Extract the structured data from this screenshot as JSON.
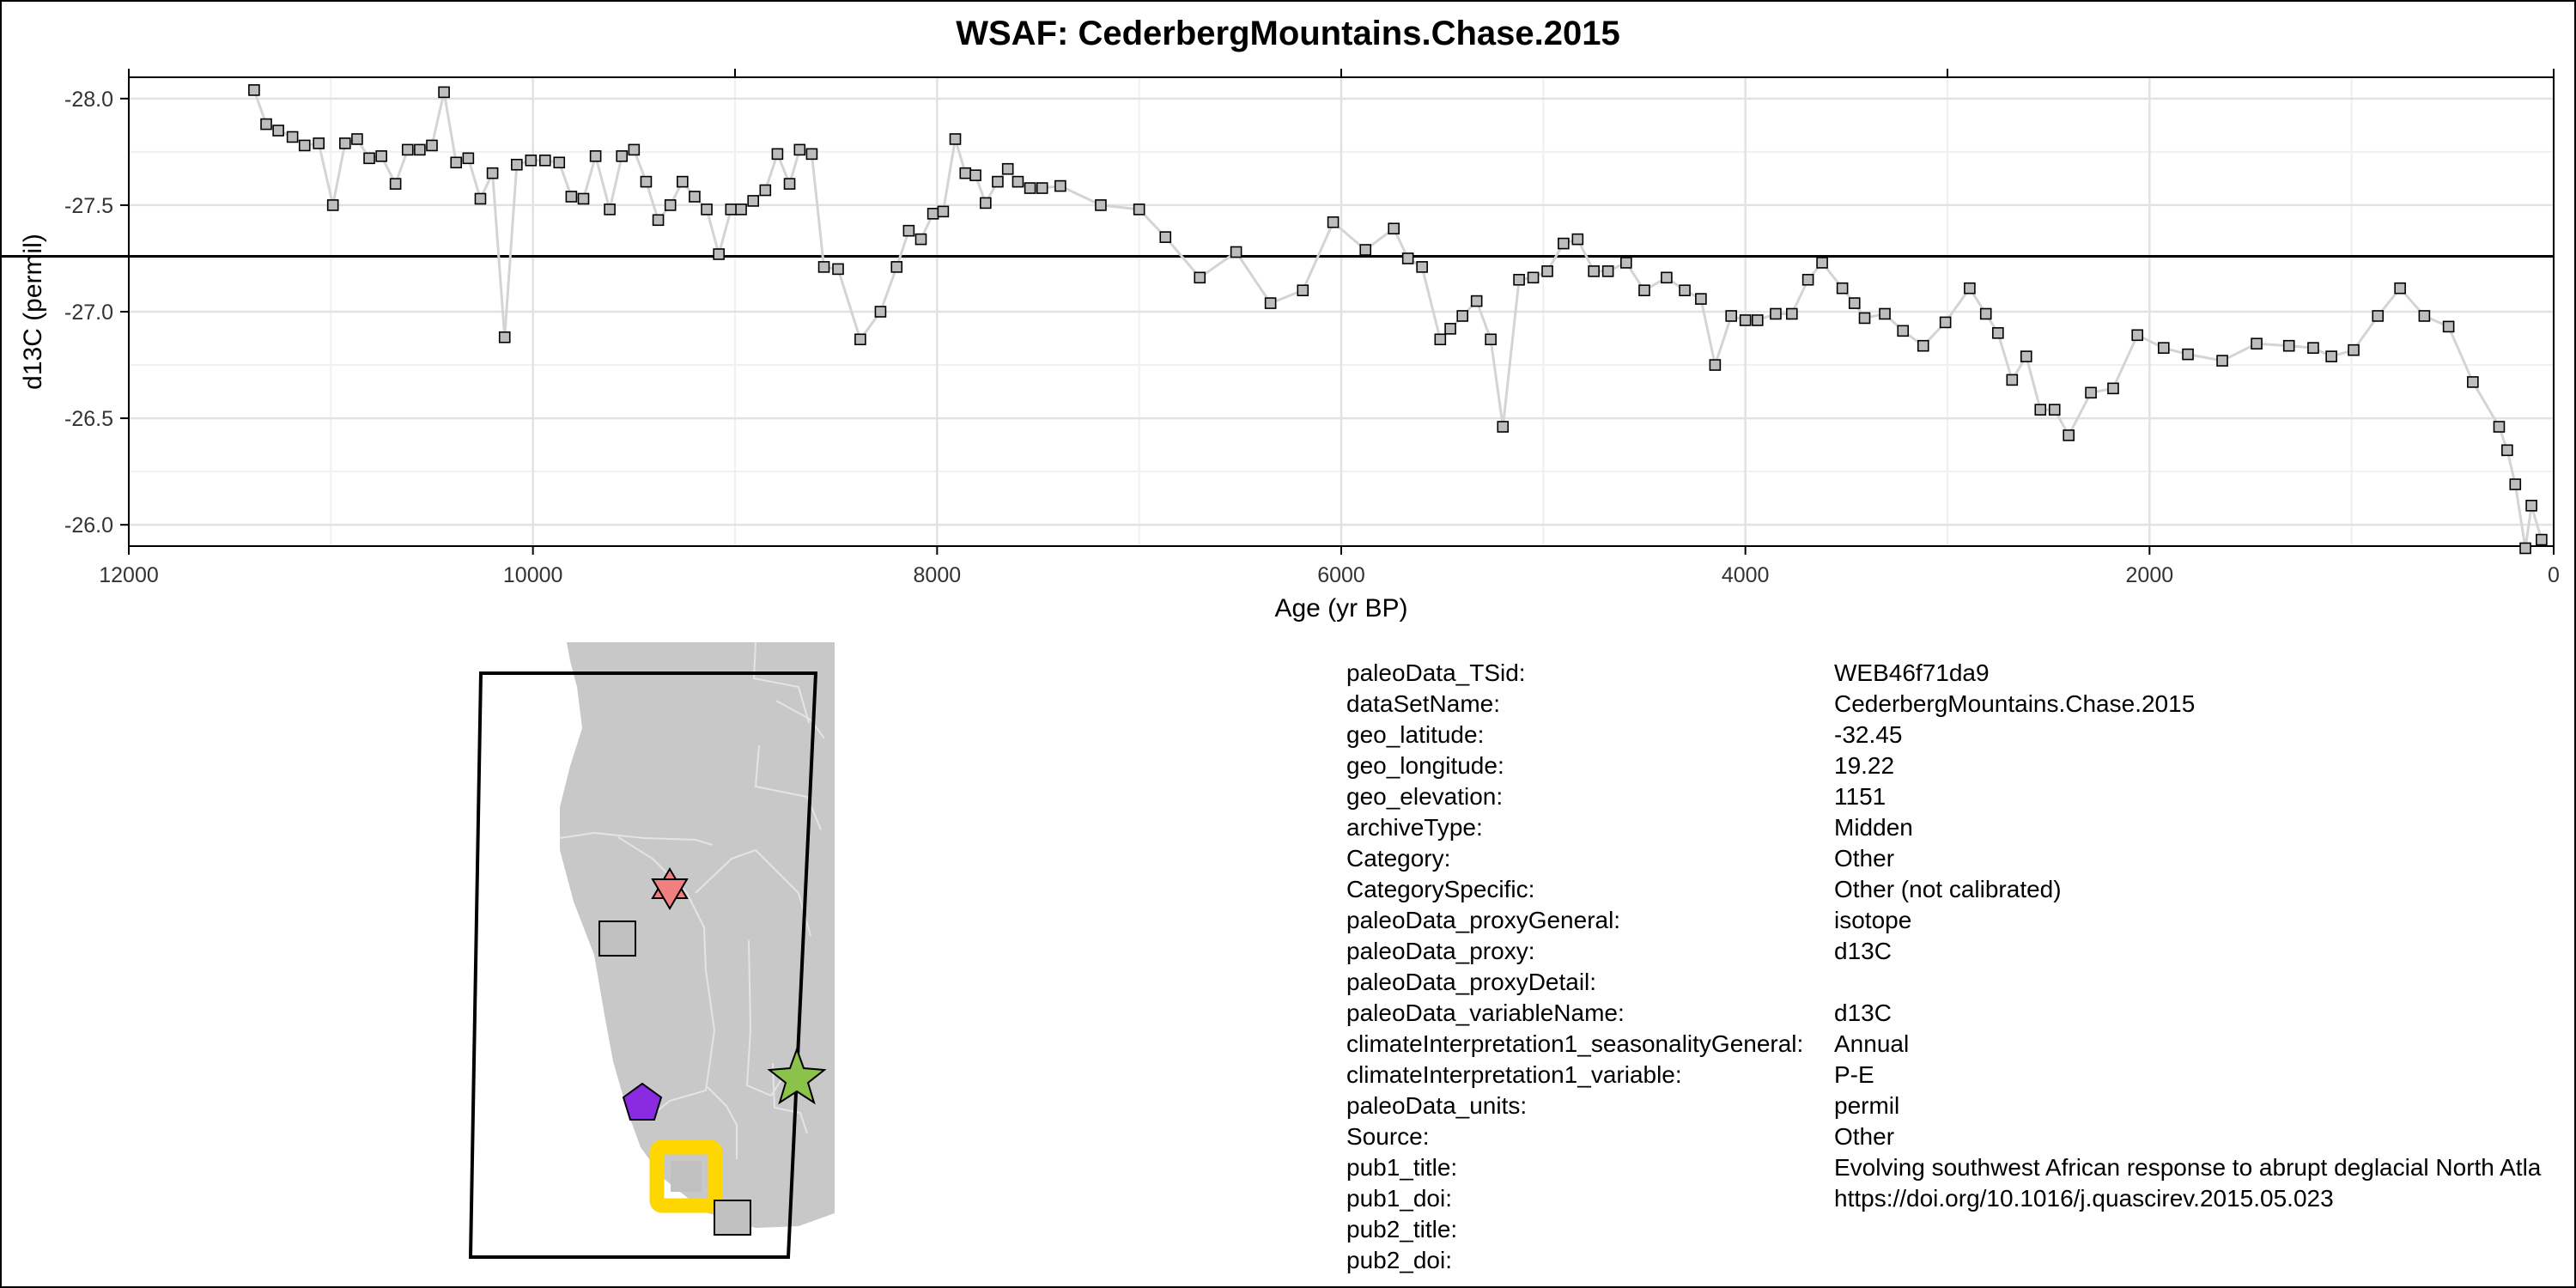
{
  "chart_data": {
    "type": "line",
    "title": "WSAF: CederbergMountains.Chase.2015",
    "xlabel": "Age (yr BP)",
    "ylabel": "d13C (permil)",
    "x_reversed": true,
    "y_reversed": true,
    "xlim": [
      12000,
      0
    ],
    "ylim": [
      -28.1,
      -25.9
    ],
    "xticks": [
      12000,
      10000,
      8000,
      6000,
      4000,
      2000,
      0
    ],
    "yticks": [
      -28.0,
      -27.5,
      -27.0,
      -26.5,
      -26.0
    ],
    "ytick_labels": [
      "-28.0",
      "-27.5",
      "-27.0",
      "-26.5",
      "-26.0"
    ],
    "reference_line_y": -27.26,
    "grid": true,
    "marker": "square",
    "line_color": "#d4d4d4",
    "marker_fill": "#bdbdbd",
    "series": [
      {
        "x": [
          11380,
          11320,
          11260,
          11190,
          11130,
          11060,
          10990,
          10930,
          10870,
          10810,
          10750,
          10680,
          10620,
          10560,
          10500,
          10440,
          10380,
          10320,
          10260,
          10200,
          10140,
          10080,
          10010,
          9940,
          9870,
          9810,
          9750,
          9690,
          9620,
          9560,
          9500,
          9440,
          9380,
          9320,
          9260,
          9200,
          9140,
          9080,
          9020,
          8970,
          8910,
          8850,
          8790,
          8730,
          8680,
          8620,
          8560,
          8490,
          8380,
          8280,
          8200,
          8140,
          8080,
          8020,
          7970,
          7910,
          7860,
          7810,
          7760,
          7700,
          7650,
          7600,
          7540,
          7480,
          7390,
          7190,
          7000,
          6870,
          6700,
          6520,
          6350,
          6190,
          6040,
          5880,
          5740,
          5670,
          5600,
          5510,
          5460,
          5400,
          5330,
          5260,
          5200,
          5120,
          5050,
          4980,
          4900,
          4830,
          4750,
          4680,
          4590,
          4500,
          4390,
          4300,
          4220,
          4150,
          4070,
          4000,
          3940,
          3850,
          3770,
          3690,
          3620,
          3520,
          3460,
          3410,
          3310,
          3220,
          3120,
          3010,
          2890,
          2810,
          2750,
          2680,
          2610,
          2540,
          2470,
          2400,
          2290,
          2180,
          2060,
          1930,
          1810,
          1640,
          1470,
          1310,
          1190,
          1100,
          990,
          870,
          760,
          640,
          520,
          400,
          270,
          230,
          190,
          140,
          110,
          60
        ],
        "y": [
          -28.04,
          -27.88,
          -27.85,
          -27.82,
          -27.78,
          -27.79,
          -27.5,
          -27.79,
          -27.81,
          -27.72,
          -27.73,
          -27.6,
          -27.76,
          -27.76,
          -27.78,
          -28.03,
          -27.7,
          -27.72,
          -27.53,
          -27.65,
          -26.88,
          -27.69,
          -27.71,
          -27.71,
          -27.7,
          -27.54,
          -27.53,
          -27.73,
          -27.48,
          -27.73,
          -27.76,
          -27.61,
          -27.43,
          -27.5,
          -27.61,
          -27.54,
          -27.48,
          -27.27,
          -27.48,
          -27.48,
          -27.52,
          -27.57,
          -27.74,
          -27.6,
          -27.76,
          -27.74,
          -27.21,
          -27.2,
          -26.87,
          -27.0,
          -27.21,
          -27.38,
          -27.34,
          -27.46,
          -27.47,
          -27.81,
          -27.65,
          -27.64,
          -27.51,
          -27.61,
          -27.67,
          -27.61,
          -27.58,
          -27.58,
          -27.59,
          -27.5,
          -27.48,
          -27.35,
          -27.16,
          -27.28,
          -27.04,
          -27.1,
          -27.42,
          -27.29,
          -27.39,
          -27.25,
          -27.21,
          -26.87,
          -26.92,
          -26.98,
          -27.05,
          -26.87,
          -26.46,
          -27.15,
          -27.16,
          -27.19,
          -27.32,
          -27.34,
          -27.19,
          -27.19,
          -27.23,
          -27.1,
          -27.16,
          -27.1,
          -27.06,
          -26.75,
          -26.98,
          -26.96,
          -26.96,
          -26.99,
          -26.99,
          -27.15,
          -27.23,
          -27.11,
          -27.04,
          -26.97,
          -26.99,
          -26.91,
          -26.84,
          -26.95,
          -27.11,
          -26.99,
          -26.9,
          -26.68,
          -26.79,
          -26.54,
          -26.54,
          -26.42,
          -26.62,
          -26.64,
          -26.89,
          -26.83,
          -26.8,
          -26.77,
          -26.85,
          -26.84,
          -26.83,
          -26.79,
          -26.82,
          -26.98,
          -27.11,
          -26.98,
          -26.93,
          -26.67,
          -26.46,
          -26.35,
          -26.19,
          -25.89,
          -26.09,
          -25.93
        ]
      }
    ]
  },
  "map": {
    "land_color": "#c8c8c8",
    "markers": [
      {
        "shape": "star-of-david-icon",
        "color": "#f08080"
      },
      {
        "shape": "square-icon",
        "color": "#c0c0c0"
      },
      {
        "shape": "pentagon-icon",
        "color": "#8a2be2"
      },
      {
        "shape": "star-icon",
        "color": "#8bc34a"
      },
      {
        "shape": "highlighted-square-icon",
        "color": "#ffd700"
      },
      {
        "shape": "square-icon",
        "color": "#c0c0c0"
      }
    ]
  },
  "metadata": [
    {
      "key": "paleoData_TSid:",
      "value": "WEB46f71da9"
    },
    {
      "key": "dataSetName:",
      "value": "CederbergMountains.Chase.2015"
    },
    {
      "key": "geo_latitude:",
      "value": "-32.45"
    },
    {
      "key": "geo_longitude:",
      "value": "19.22"
    },
    {
      "key": "geo_elevation:",
      "value": "1151"
    },
    {
      "key": "archiveType:",
      "value": "Midden"
    },
    {
      "key": "Category:",
      "value": "Other"
    },
    {
      "key": "CategorySpecific:",
      "value": "Other (not calibrated)"
    },
    {
      "key": "paleoData_proxyGeneral:",
      "value": "isotope"
    },
    {
      "key": "paleoData_proxy:",
      "value": "d13C"
    },
    {
      "key": "paleoData_proxyDetail:",
      "value": ""
    },
    {
      "key": "paleoData_variableName:",
      "value": "d13C"
    },
    {
      "key": "climateInterpretation1_seasonalityGeneral:",
      "value": "Annual"
    },
    {
      "key": "climateInterpretation1_variable:",
      "value": "P-E"
    },
    {
      "key": "paleoData_units:",
      "value": "permil"
    },
    {
      "key": "Source:",
      "value": "Other"
    },
    {
      "key": "pub1_title:",
      "value": "Evolving southwest African response to abrupt deglacial North Atla"
    },
    {
      "key": "pub1_doi:",
      "value": "https://doi.org/10.1016/j.quascirev.2015.05.023"
    },
    {
      "key": "pub2_title:",
      "value": ""
    },
    {
      "key": "pub2_doi:",
      "value": ""
    }
  ]
}
